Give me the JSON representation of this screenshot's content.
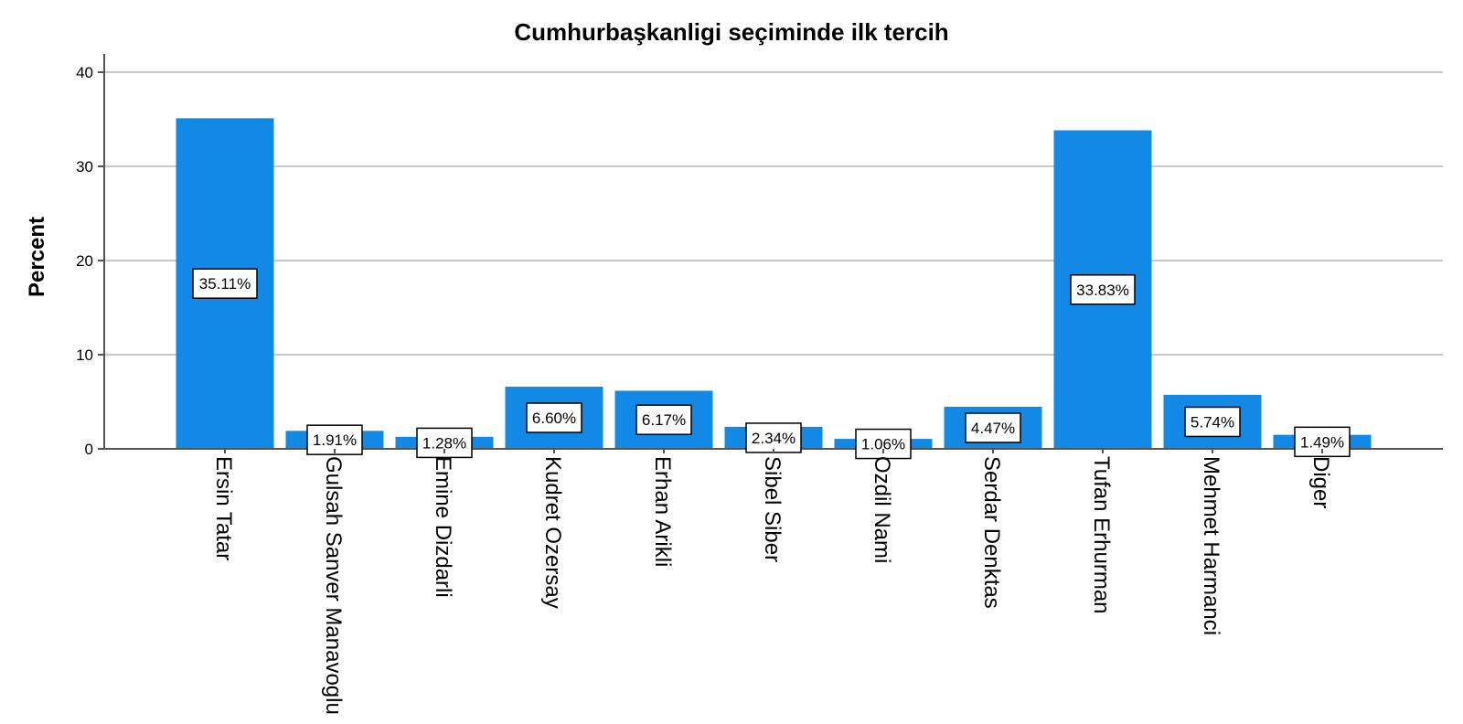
{
  "chart_data": {
    "type": "bar",
    "title": "Cumhurbaşkanligi seçiminde ilk tercih",
    "xlabel": "",
    "ylabel": "Percent",
    "ylim": [
      0,
      40
    ],
    "yticks": [
      0,
      10,
      20,
      30,
      40
    ],
    "grid": true,
    "bar_color": "#128ae5",
    "categories": [
      "Ersin Tatar",
      "Gulsah Sanver Manavoglu",
      "Emine Dizdarli",
      "Kudret Ozersay",
      "Erhan Arikli",
      "Sibel Siber",
      "Ozdil Nami",
      "Serdar Denktas",
      "Tufan Erhurman",
      "Mehmet Harmanci",
      "Diger"
    ],
    "values": [
      35.11,
      1.91,
      1.28,
      6.6,
      6.17,
      2.34,
      1.06,
      4.47,
      33.83,
      5.74,
      1.49
    ],
    "data_labels": [
      "35.11%",
      "1.91%",
      "1.28%",
      "6.60%",
      "6.17%",
      "2.34%",
      "1.06%",
      "4.47%",
      "33.83%",
      "5.74%",
      "1.49%"
    ]
  }
}
